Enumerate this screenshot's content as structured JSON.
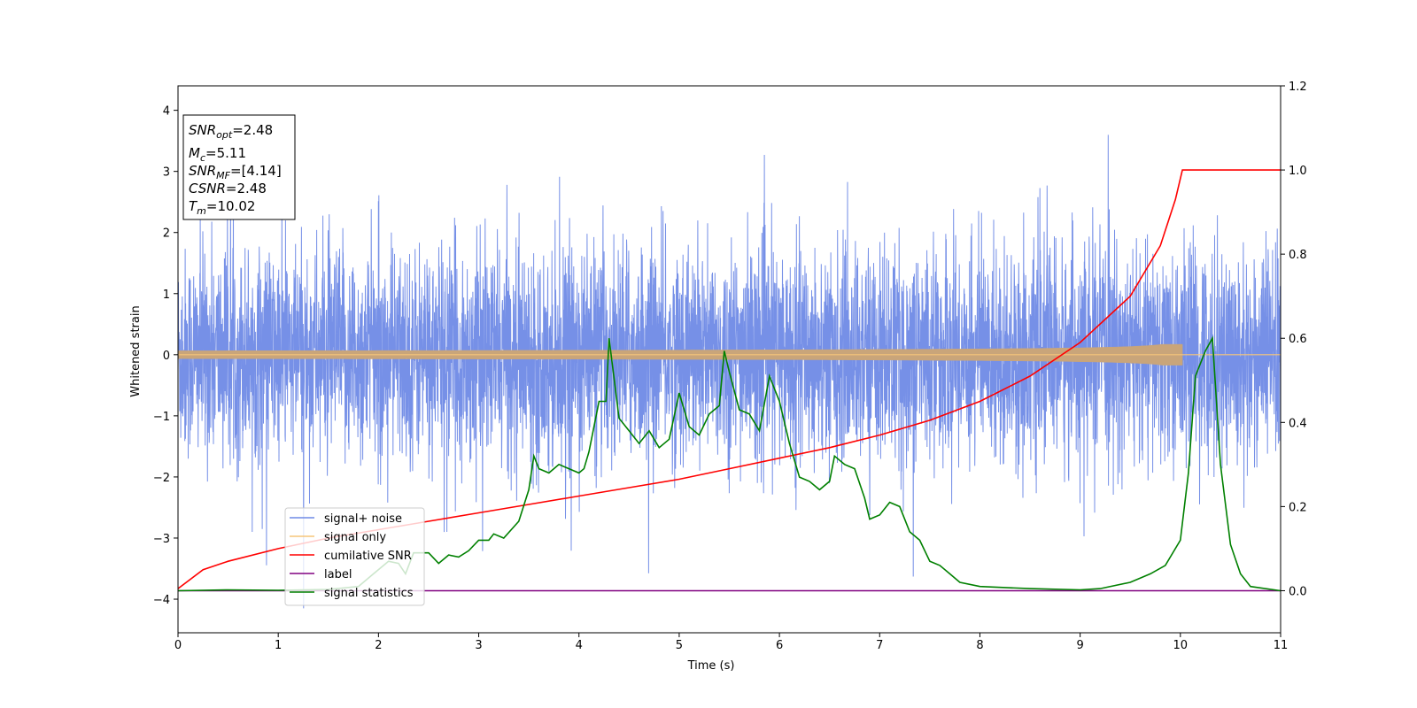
{
  "chart_data": {
    "type": "line",
    "xlabel": "Time (s)",
    "ylabel": "Whitened strain",
    "xlim": [
      0,
      11
    ],
    "ylim": [
      -4.55,
      4.4
    ],
    "y2lim": [
      -0.1,
      1.2
    ],
    "x_ticks": [
      0,
      1,
      2,
      3,
      4,
      5,
      6,
      7,
      8,
      9,
      10,
      11
    ],
    "y_ticks": [
      4,
      3,
      2,
      1,
      0,
      -1,
      -2,
      -3,
      -4
    ],
    "y_tick_labels": [
      "4",
      "3",
      "2",
      "1",
      "0",
      "−1",
      "−2",
      "−3",
      "−4"
    ],
    "y2_ticks": [
      1.2,
      1.0,
      0.8,
      0.6,
      0.4,
      0.2,
      0.0
    ],
    "y2_tick_labels": [
      "1.2",
      "1.0",
      "0.8",
      "0.6",
      "0.4",
      "0.2",
      "0.0"
    ],
    "legend_position": "lower-left",
    "grid": false,
    "info_box": {
      "snr_opt": {
        "label": "SNR",
        "sub": "opt",
        "value": "=2.48"
      },
      "mc": {
        "label": "M",
        "sub": "c",
        "value": "=5.11"
      },
      "snr_mf": {
        "label": "SNR",
        "sub": "MF",
        "value": "=[4.14]"
      },
      "csnr": {
        "label": "CSNR",
        "value": "=2.48"
      },
      "tm": {
        "label": "T",
        "sub": "m",
        "value": "=10.02"
      }
    },
    "series": [
      {
        "name": "signal+ noise",
        "color": "#6f8ae6",
        "axis": "left",
        "kind": "noise",
        "duration": 11,
        "sigma": 0.95,
        "peak_range": [
          -4.15,
          3.98
        ]
      },
      {
        "name": "signal only",
        "color": "#f5c57a",
        "axis": "left",
        "kind": "chirp",
        "merger_time": 10.02,
        "peak_amplitude": 0.2
      },
      {
        "name": "cumilative SNR",
        "color": "#ff0000",
        "axis": "right",
        "points": [
          [
            0,
            0.005
          ],
          [
            0.25,
            0.05
          ],
          [
            0.5,
            0.07
          ],
          [
            1,
            0.1
          ],
          [
            1.5,
            0.125
          ],
          [
            2,
            0.145
          ],
          [
            2.5,
            0.165
          ],
          [
            3,
            0.185
          ],
          [
            3.5,
            0.205
          ],
          [
            4,
            0.225
          ],
          [
            4.5,
            0.245
          ],
          [
            5,
            0.265
          ],
          [
            5.5,
            0.29
          ],
          [
            6,
            0.315
          ],
          [
            6.5,
            0.34
          ],
          [
            7,
            0.37
          ],
          [
            7.5,
            0.405
          ],
          [
            8,
            0.45
          ],
          [
            8.5,
            0.51
          ],
          [
            9,
            0.59
          ],
          [
            9.5,
            0.7
          ],
          [
            9.8,
            0.82
          ],
          [
            9.95,
            0.93
          ],
          [
            10.02,
            1.0
          ],
          [
            11,
            1.0
          ]
        ]
      },
      {
        "name": "label",
        "color": "#800080",
        "axis": "right",
        "points": [
          [
            0,
            0.0
          ],
          [
            11,
            0.0
          ]
        ]
      },
      {
        "name": "signal statistics",
        "color": "#008000",
        "axis": "right",
        "points": [
          [
            0,
            0.0
          ],
          [
            0.5,
            0.002
          ],
          [
            1,
            0.001
          ],
          [
            1.5,
            0.003
          ],
          [
            1.8,
            0.01
          ],
          [
            1.95,
            0.04
          ],
          [
            2.1,
            0.07
          ],
          [
            2.2,
            0.065
          ],
          [
            2.27,
            0.04
          ],
          [
            2.35,
            0.09
          ],
          [
            2.5,
            0.09
          ],
          [
            2.6,
            0.065
          ],
          [
            2.7,
            0.085
          ],
          [
            2.8,
            0.08
          ],
          [
            2.9,
            0.095
          ],
          [
            3,
            0.12
          ],
          [
            3.1,
            0.12
          ],
          [
            3.15,
            0.135
          ],
          [
            3.25,
            0.125
          ],
          [
            3.4,
            0.165
          ],
          [
            3.5,
            0.24
          ],
          [
            3.55,
            0.32
          ],
          [
            3.6,
            0.29
          ],
          [
            3.7,
            0.28
          ],
          [
            3.8,
            0.3
          ],
          [
            3.9,
            0.29
          ],
          [
            4,
            0.28
          ],
          [
            4.05,
            0.29
          ],
          [
            4.1,
            0.33
          ],
          [
            4.2,
            0.45
          ],
          [
            4.27,
            0.45
          ],
          [
            4.3,
            0.6
          ],
          [
            4.4,
            0.41
          ],
          [
            4.5,
            0.38
          ],
          [
            4.6,
            0.35
          ],
          [
            4.7,
            0.38
          ],
          [
            4.8,
            0.34
          ],
          [
            4.9,
            0.36
          ],
          [
            5,
            0.47
          ],
          [
            5.1,
            0.39
          ],
          [
            5.2,
            0.37
          ],
          [
            5.3,
            0.42
          ],
          [
            5.4,
            0.44
          ],
          [
            5.45,
            0.57
          ],
          [
            5.5,
            0.52
          ],
          [
            5.6,
            0.43
          ],
          [
            5.7,
            0.42
          ],
          [
            5.8,
            0.38
          ],
          [
            5.9,
            0.51
          ],
          [
            6,
            0.45
          ],
          [
            6.1,
            0.35
          ],
          [
            6.2,
            0.27
          ],
          [
            6.3,
            0.26
          ],
          [
            6.4,
            0.24
          ],
          [
            6.5,
            0.26
          ],
          [
            6.55,
            0.32
          ],
          [
            6.65,
            0.3
          ],
          [
            6.75,
            0.29
          ],
          [
            6.85,
            0.22
          ],
          [
            6.9,
            0.17
          ],
          [
            7,
            0.18
          ],
          [
            7.1,
            0.21
          ],
          [
            7.2,
            0.2
          ],
          [
            7.3,
            0.14
          ],
          [
            7.4,
            0.12
          ],
          [
            7.5,
            0.07
          ],
          [
            7.6,
            0.06
          ],
          [
            7.7,
            0.04
          ],
          [
            7.8,
            0.02
          ],
          [
            8,
            0.01
          ],
          [
            8.5,
            0.005
          ],
          [
            9,
            0.002
          ],
          [
            9.2,
            0.005
          ],
          [
            9.5,
            0.02
          ],
          [
            9.7,
            0.04
          ],
          [
            9.85,
            0.06
          ],
          [
            10,
            0.12
          ],
          [
            10.08,
            0.28
          ],
          [
            10.15,
            0.51
          ],
          [
            10.25,
            0.57
          ],
          [
            10.32,
            0.6
          ],
          [
            10.4,
            0.3
          ],
          [
            10.5,
            0.11
          ],
          [
            10.6,
            0.04
          ],
          [
            10.7,
            0.01
          ],
          [
            11,
            0.0
          ]
        ]
      }
    ]
  }
}
